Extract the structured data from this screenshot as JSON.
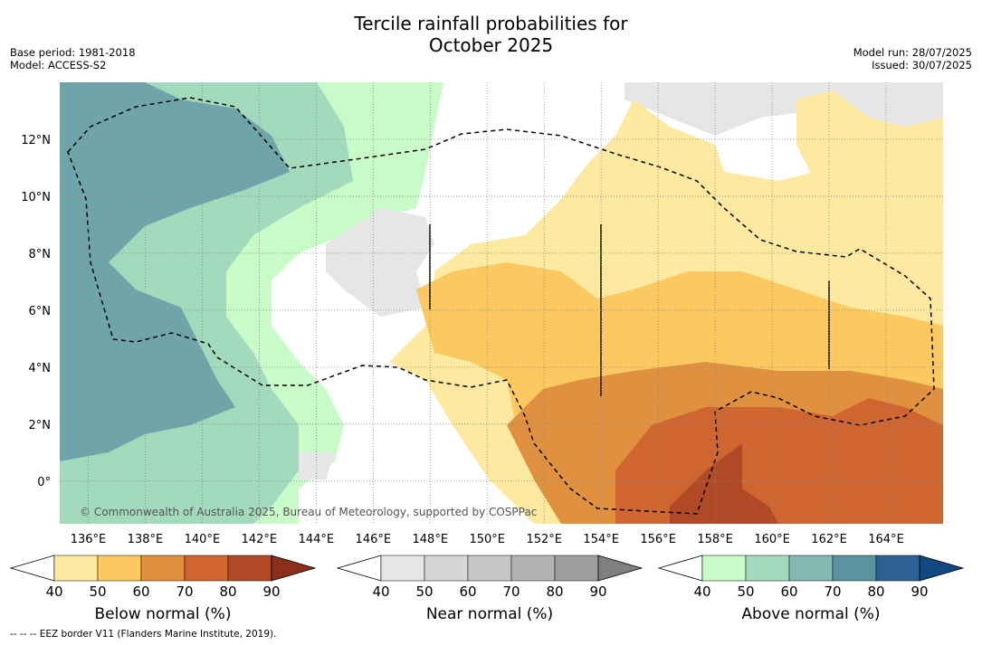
{
  "title": {
    "line1": "Tercile rainfall probabilities for",
    "line2": "October 2025"
  },
  "meta_left": {
    "base_period": "Base period: 1981-2018",
    "model": "Model: ACCESS-S2"
  },
  "meta_right": {
    "model_run": "Model run: 28/07/2025",
    "issued": "Issued: 30/07/2025"
  },
  "copyright": "© Commonwealth of Australia 2025, Bureau of Meteorology, supported by COSPPac",
  "footnote": "--  --  -- EEZ border V11 (Flanders Marine Institute, 2019).",
  "map": {
    "lon_range": [
      135,
      166
    ],
    "lat_range": [
      -1.5,
      14
    ],
    "lon_ticks": [
      "136°E",
      "138°E",
      "140°E",
      "142°E",
      "144°E",
      "146°E",
      "148°E",
      "150°E",
      "152°E",
      "154°E",
      "156°E",
      "158°E",
      "160°E",
      "162°E",
      "164°E"
    ],
    "lat_ticks": [
      "12°N",
      "10°N",
      "8°N",
      "6°N",
      "4°N",
      "2°N",
      "0°"
    ]
  },
  "colorbars": [
    {
      "name": "Below normal (%)",
      "ticks": [
        "40",
        "50",
        "60",
        "70",
        "80",
        "90"
      ],
      "colors": [
        "#fdeaa0",
        "#fcc860",
        "#e0913f",
        "#cf6632",
        "#b04a26",
        "#8c2e1a"
      ]
    },
    {
      "name": "Near normal (%)",
      "ticks": [
        "40",
        "50",
        "60",
        "70",
        "80",
        "90"
      ],
      "colors": [
        "#e6e6e6",
        "#d6d6d6",
        "#c6c6c6",
        "#b3b3b3",
        "#9e9e9e",
        "#7f7f7f"
      ]
    },
    {
      "name": "Above normal (%)",
      "ticks": [
        "40",
        "50",
        "60",
        "70",
        "80",
        "90"
      ],
      "colors": [
        "#c9fbc9",
        "#a3d9bc",
        "#83b8b2",
        "#5b93a3",
        "#2f6095",
        "#124780"
      ]
    }
  ]
}
